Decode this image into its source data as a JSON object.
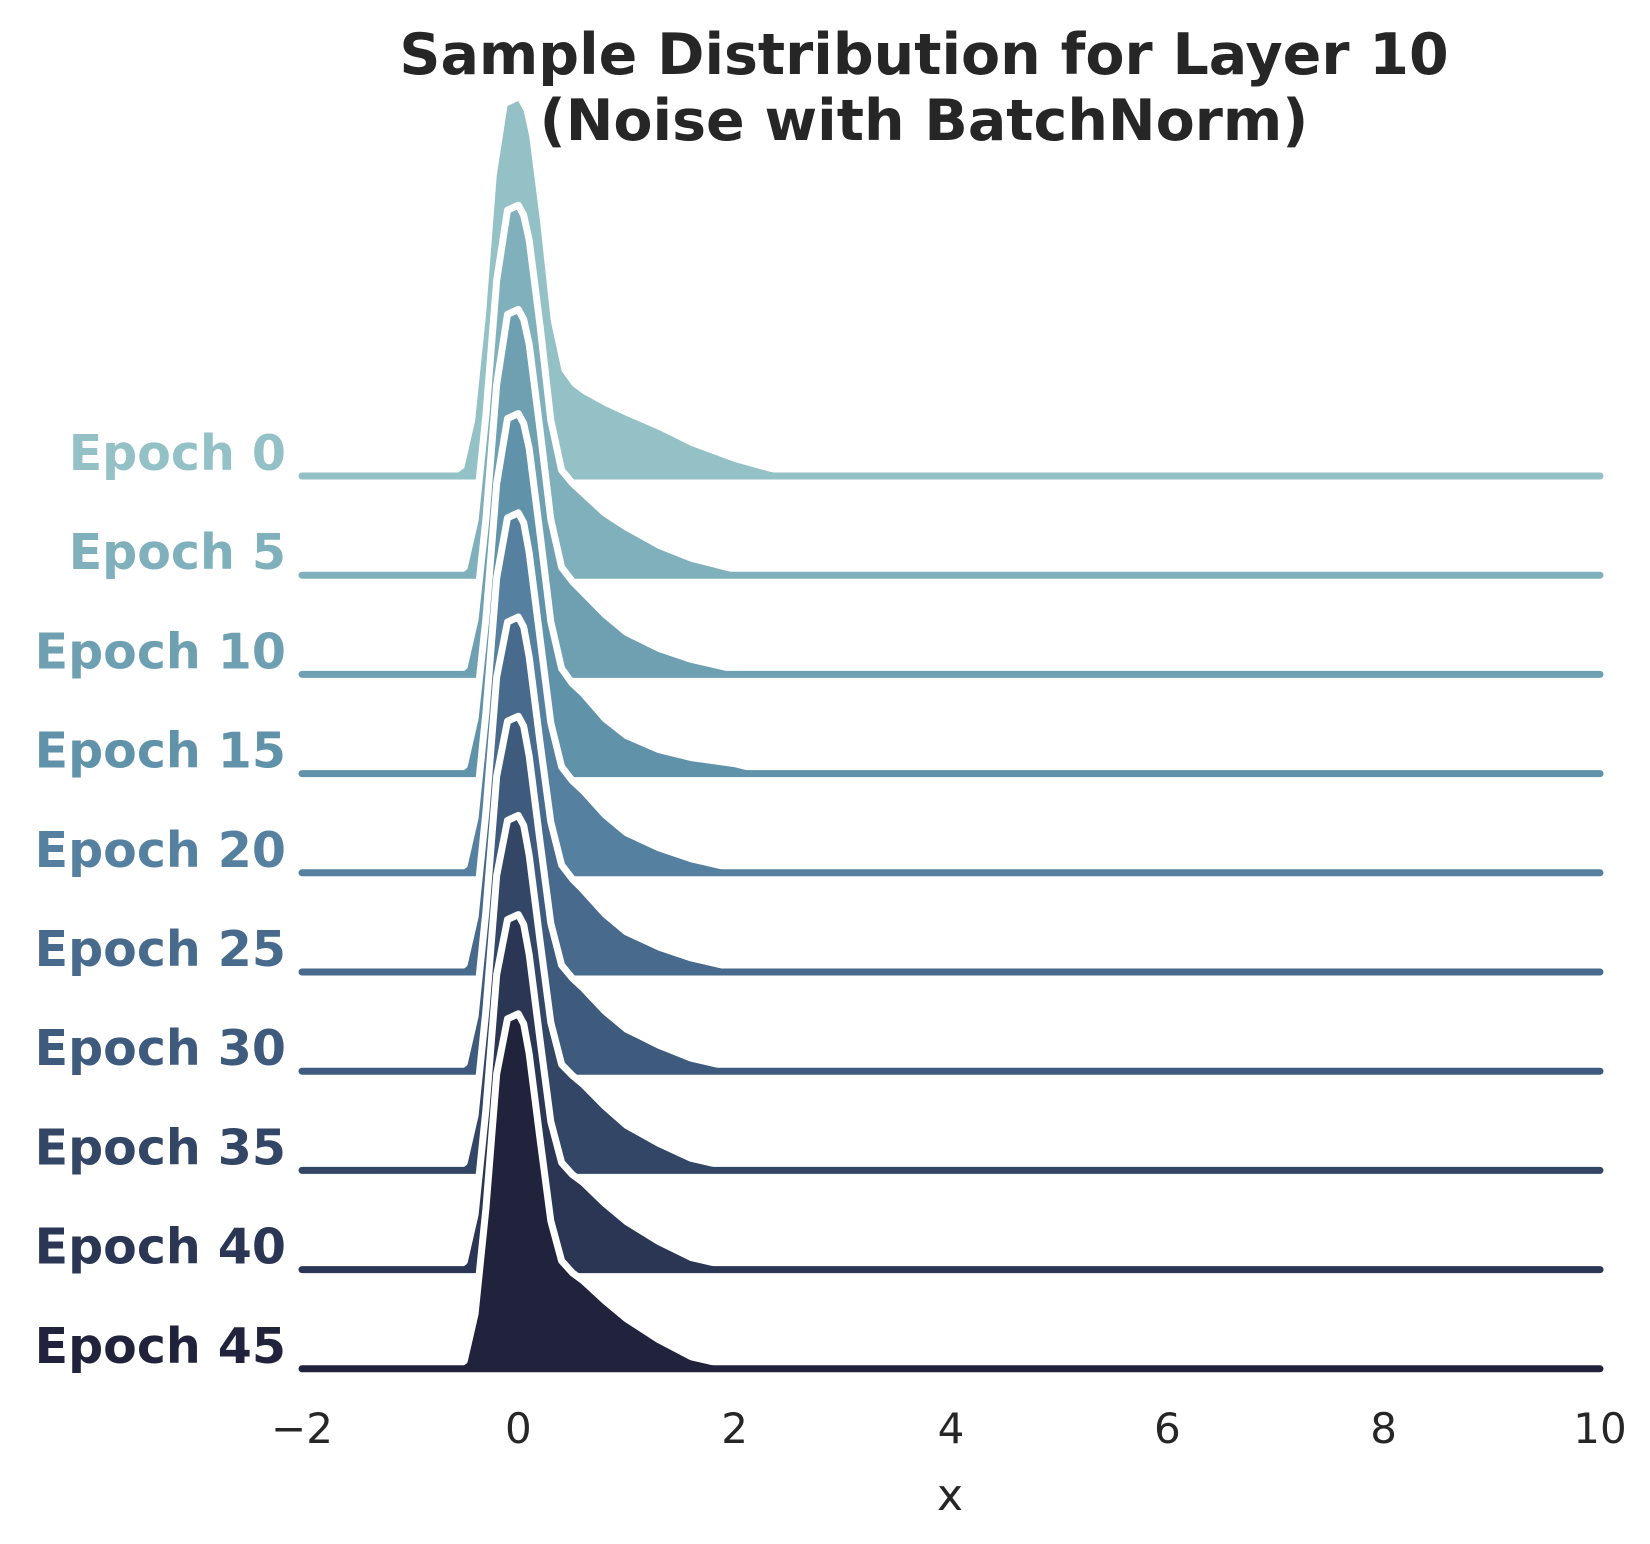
{
  "chart_data": {
    "type": "area",
    "subtype": "ridgeline",
    "title_lines": [
      "Sample Distribution for Layer 10",
      "(Noise with BatchNorm)"
    ],
    "xlabel": "x",
    "ylabel": "",
    "xlim": [
      -2,
      10
    ],
    "xticks": [
      -2,
      0,
      2,
      4,
      6,
      8,
      10
    ],
    "xtick_labels": [
      "−2",
      "0",
      "2",
      "4",
      "6",
      "8",
      "10"
    ],
    "grid": false,
    "legend": "none",
    "x": [
      -2.0,
      -0.6,
      -0.5,
      -0.4,
      -0.3,
      -0.2,
      -0.1,
      0.0,
      0.05,
      0.1,
      0.2,
      0.3,
      0.4,
      0.5,
      0.6,
      0.8,
      1.0,
      1.3,
      1.6,
      2.0,
      2.3,
      2.5,
      10.0
    ],
    "series": [
      {
        "name": "Epoch 0",
        "color": "#93c1c6",
        "values": [
          0.0,
          0.0,
          0.08,
          0.55,
          1.6,
          3.0,
          3.7,
          3.75,
          3.65,
          3.4,
          2.55,
          1.55,
          1.05,
          0.9,
          0.82,
          0.7,
          0.6,
          0.46,
          0.3,
          0.14,
          0.05,
          0.0,
          0.0
        ]
      },
      {
        "name": "Epoch 5",
        "color": "#80b0bb",
        "values": [
          0.0,
          0.0,
          0.08,
          0.55,
          1.6,
          2.95,
          3.65,
          3.7,
          3.6,
          3.35,
          2.5,
          1.55,
          1.05,
          0.92,
          0.82,
          0.62,
          0.48,
          0.3,
          0.17,
          0.06,
          0.01,
          0.0,
          0.0
        ]
      },
      {
        "name": "Epoch 10",
        "color": "#6fa0b2",
        "values": [
          0.0,
          0.0,
          0.08,
          0.55,
          1.55,
          2.9,
          3.6,
          3.65,
          3.55,
          3.3,
          2.45,
          1.55,
          1.07,
          0.93,
          0.82,
          0.6,
          0.42,
          0.26,
          0.15,
          0.05,
          0.0,
          0.0,
          0.0
        ]
      },
      {
        "name": "Epoch 15",
        "color": "#6092aa",
        "values": [
          0.0,
          0.0,
          0.08,
          0.55,
          1.55,
          2.9,
          3.55,
          3.6,
          3.5,
          3.25,
          2.4,
          1.52,
          1.05,
          0.9,
          0.8,
          0.55,
          0.38,
          0.24,
          0.16,
          0.1,
          0.02,
          0.0,
          0.0
        ]
      },
      {
        "name": "Epoch 20",
        "color": "#5580a0",
        "values": [
          0.0,
          0.0,
          0.08,
          0.55,
          1.6,
          2.95,
          3.55,
          3.6,
          3.5,
          3.2,
          2.35,
          1.5,
          1.06,
          0.92,
          0.82,
          0.58,
          0.4,
          0.25,
          0.14,
          0.04,
          0.0,
          0.0,
          0.0
        ]
      },
      {
        "name": "Epoch 25",
        "color": "#476a8d",
        "values": [
          0.0,
          0.0,
          0.08,
          0.55,
          1.6,
          2.95,
          3.5,
          3.55,
          3.45,
          3.15,
          2.3,
          1.5,
          1.07,
          0.93,
          0.82,
          0.58,
          0.4,
          0.25,
          0.14,
          0.04,
          0.0,
          0.0,
          0.0
        ]
      },
      {
        "name": "Epoch 30",
        "color": "#3e5a7d",
        "values": [
          0.0,
          0.0,
          0.08,
          0.55,
          1.6,
          2.95,
          3.5,
          3.55,
          3.45,
          3.15,
          2.3,
          1.48,
          1.06,
          0.93,
          0.83,
          0.6,
          0.42,
          0.26,
          0.13,
          0.03,
          0.0,
          0.0,
          0.0
        ]
      },
      {
        "name": "Epoch 35",
        "color": "#334666",
        "values": [
          0.0,
          0.0,
          0.08,
          0.55,
          1.6,
          2.95,
          3.5,
          3.55,
          3.45,
          3.15,
          2.3,
          1.48,
          1.06,
          0.95,
          0.86,
          0.64,
          0.45,
          0.27,
          0.12,
          0.02,
          0.0,
          0.0,
          0.0
        ]
      },
      {
        "name": "Epoch 40",
        "color": "#2a3654",
        "values": [
          0.0,
          0.0,
          0.08,
          0.55,
          1.6,
          2.95,
          3.5,
          3.55,
          3.45,
          3.15,
          2.3,
          1.48,
          1.07,
          0.95,
          0.87,
          0.66,
          0.48,
          0.28,
          0.12,
          0.02,
          0.0,
          0.0,
          0.0
        ]
      },
      {
        "name": "Epoch 45",
        "color": "#20233b",
        "values": [
          0.0,
          0.0,
          0.08,
          0.55,
          1.6,
          2.95,
          3.5,
          3.55,
          3.45,
          3.15,
          2.3,
          1.48,
          1.08,
          0.96,
          0.88,
          0.68,
          0.5,
          0.29,
          0.12,
          0.02,
          0.0,
          0.0,
          0.0
        ]
      }
    ]
  }
}
